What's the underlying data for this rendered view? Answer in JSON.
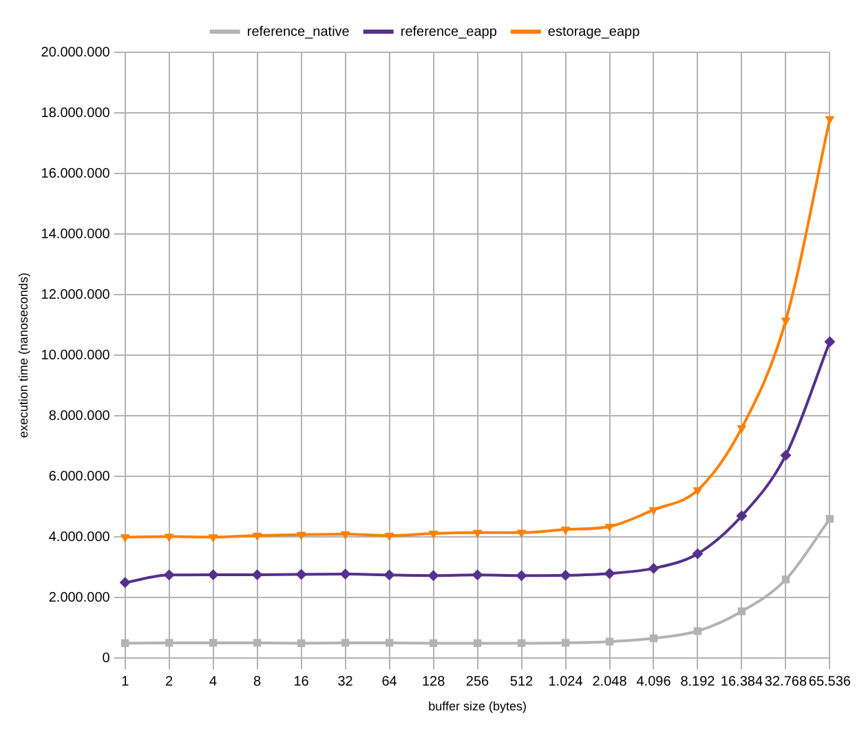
{
  "chart_data": {
    "type": "line",
    "xlabel": "buffer size (bytes)",
    "ylabel": "execution time (nanoseconds)",
    "categories": [
      "1",
      "2",
      "4",
      "8",
      "16",
      "32",
      "64",
      "128",
      "256",
      "512",
      "1.024",
      "2.048",
      "4.096",
      "8.192",
      "16.384",
      "32.768",
      "65.536"
    ],
    "series": [
      {
        "name": "reference_native",
        "color": "#b3b3b3",
        "marker": "square",
        "values": [
          500000,
          510000,
          510000,
          510000,
          500000,
          510000,
          510000,
          500000,
          500000,
          500000,
          510000,
          550000,
          660000,
          900000,
          1550000,
          2600000,
          4600000
        ]
      },
      {
        "name": "reference_eapp",
        "color": "#55308d",
        "marker": "diamond",
        "values": [
          2500000,
          2750000,
          2760000,
          2760000,
          2770000,
          2780000,
          2750000,
          2730000,
          2750000,
          2730000,
          2740000,
          2800000,
          2970000,
          3450000,
          4700000,
          6700000,
          10450000
        ]
      },
      {
        "name": "estorage_eapp",
        "color": "#ff8000",
        "marker": "triangle",
        "values": [
          4000000,
          4020000,
          4000000,
          4050000,
          4080000,
          4100000,
          4050000,
          4120000,
          4150000,
          4150000,
          4250000,
          4350000,
          4900000,
          5550000,
          7600000,
          11150000,
          17800000
        ]
      }
    ],
    "ylim": [
      0,
      20000000
    ],
    "yticks": [
      {
        "value": 0,
        "label": "0"
      },
      {
        "value": 2000000,
        "label": "2.000.000"
      },
      {
        "value": 4000000,
        "label": "4.000.000"
      },
      {
        "value": 6000000,
        "label": "6.000.000"
      },
      {
        "value": 8000000,
        "label": "8.000.000"
      },
      {
        "value": 10000000,
        "label": "10.000.000"
      },
      {
        "value": 12000000,
        "label": "12.000.000"
      },
      {
        "value": 14000000,
        "label": "14.000.000"
      },
      {
        "value": 16000000,
        "label": "16.000.000"
      },
      {
        "value": 18000000,
        "label": "18.000.000"
      },
      {
        "value": 20000000,
        "label": "20.000.000"
      }
    ],
    "grid": true,
    "legend": "top"
  }
}
